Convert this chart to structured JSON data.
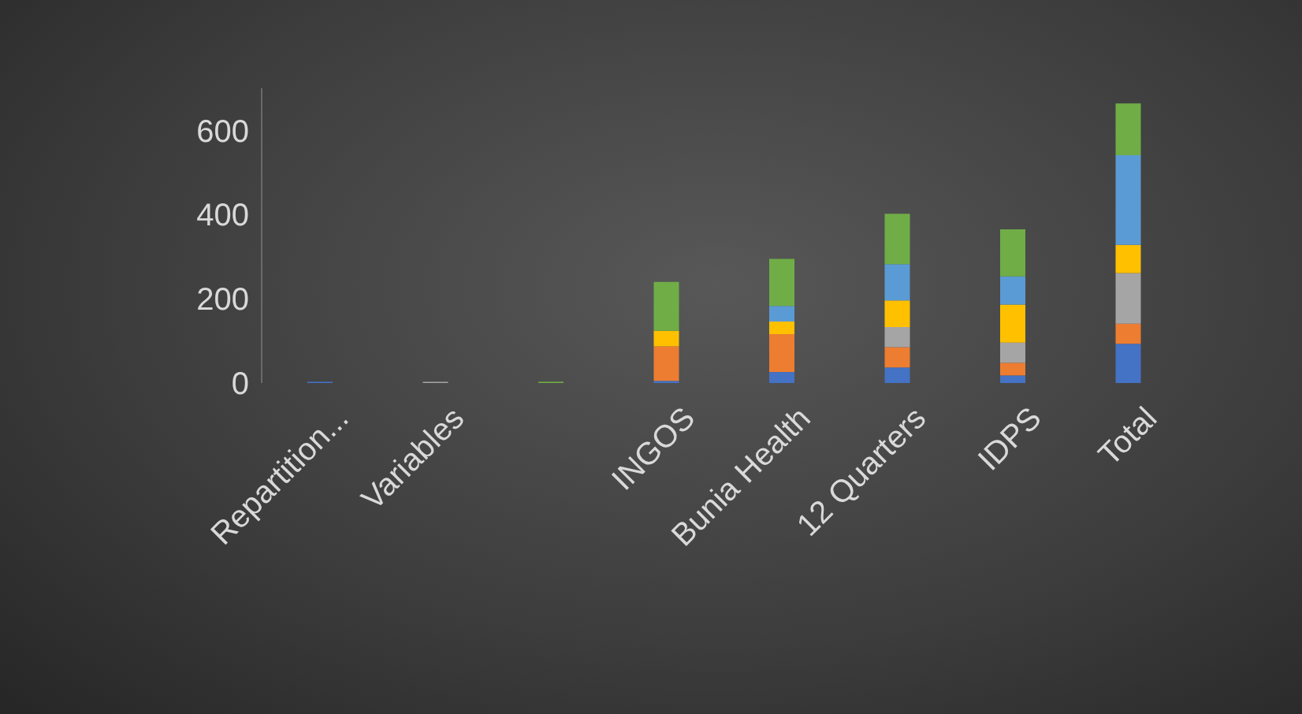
{
  "chart_data": {
    "type": "bar",
    "stacked": true,
    "categories": [
      "Repartition...",
      "Variables",
      null,
      "INGOS",
      "Bunia Health",
      "12 Quarters",
      "IDPS",
      "Total"
    ],
    "series": [
      {
        "color": "#4472c4",
        "values": [
          3,
          0,
          0,
          5,
          26,
          37,
          18,
          93
        ]
      },
      {
        "color": "#ed7d31",
        "values": [
          0,
          0,
          0,
          82,
          90,
          48,
          30,
          48
        ]
      },
      {
        "color": "#a5a5a5",
        "values": [
          0,
          3,
          0,
          0,
          0,
          48,
          48,
          120
        ]
      },
      {
        "color": "#ffc000",
        "values": [
          0,
          0,
          0,
          37,
          30,
          63,
          90,
          67
        ]
      },
      {
        "color": "#5b9bd5",
        "values": [
          0,
          0,
          0,
          0,
          37,
          86,
          67,
          213
        ]
      },
      {
        "color": "#70ad47",
        "values": [
          0,
          0,
          3,
          116,
          112,
          120,
          112,
          123
        ]
      }
    ],
    "ylim": [
      0,
      700
    ],
    "yticks": [
      0,
      200,
      400,
      600
    ],
    "grid": false,
    "legend": false
  }
}
